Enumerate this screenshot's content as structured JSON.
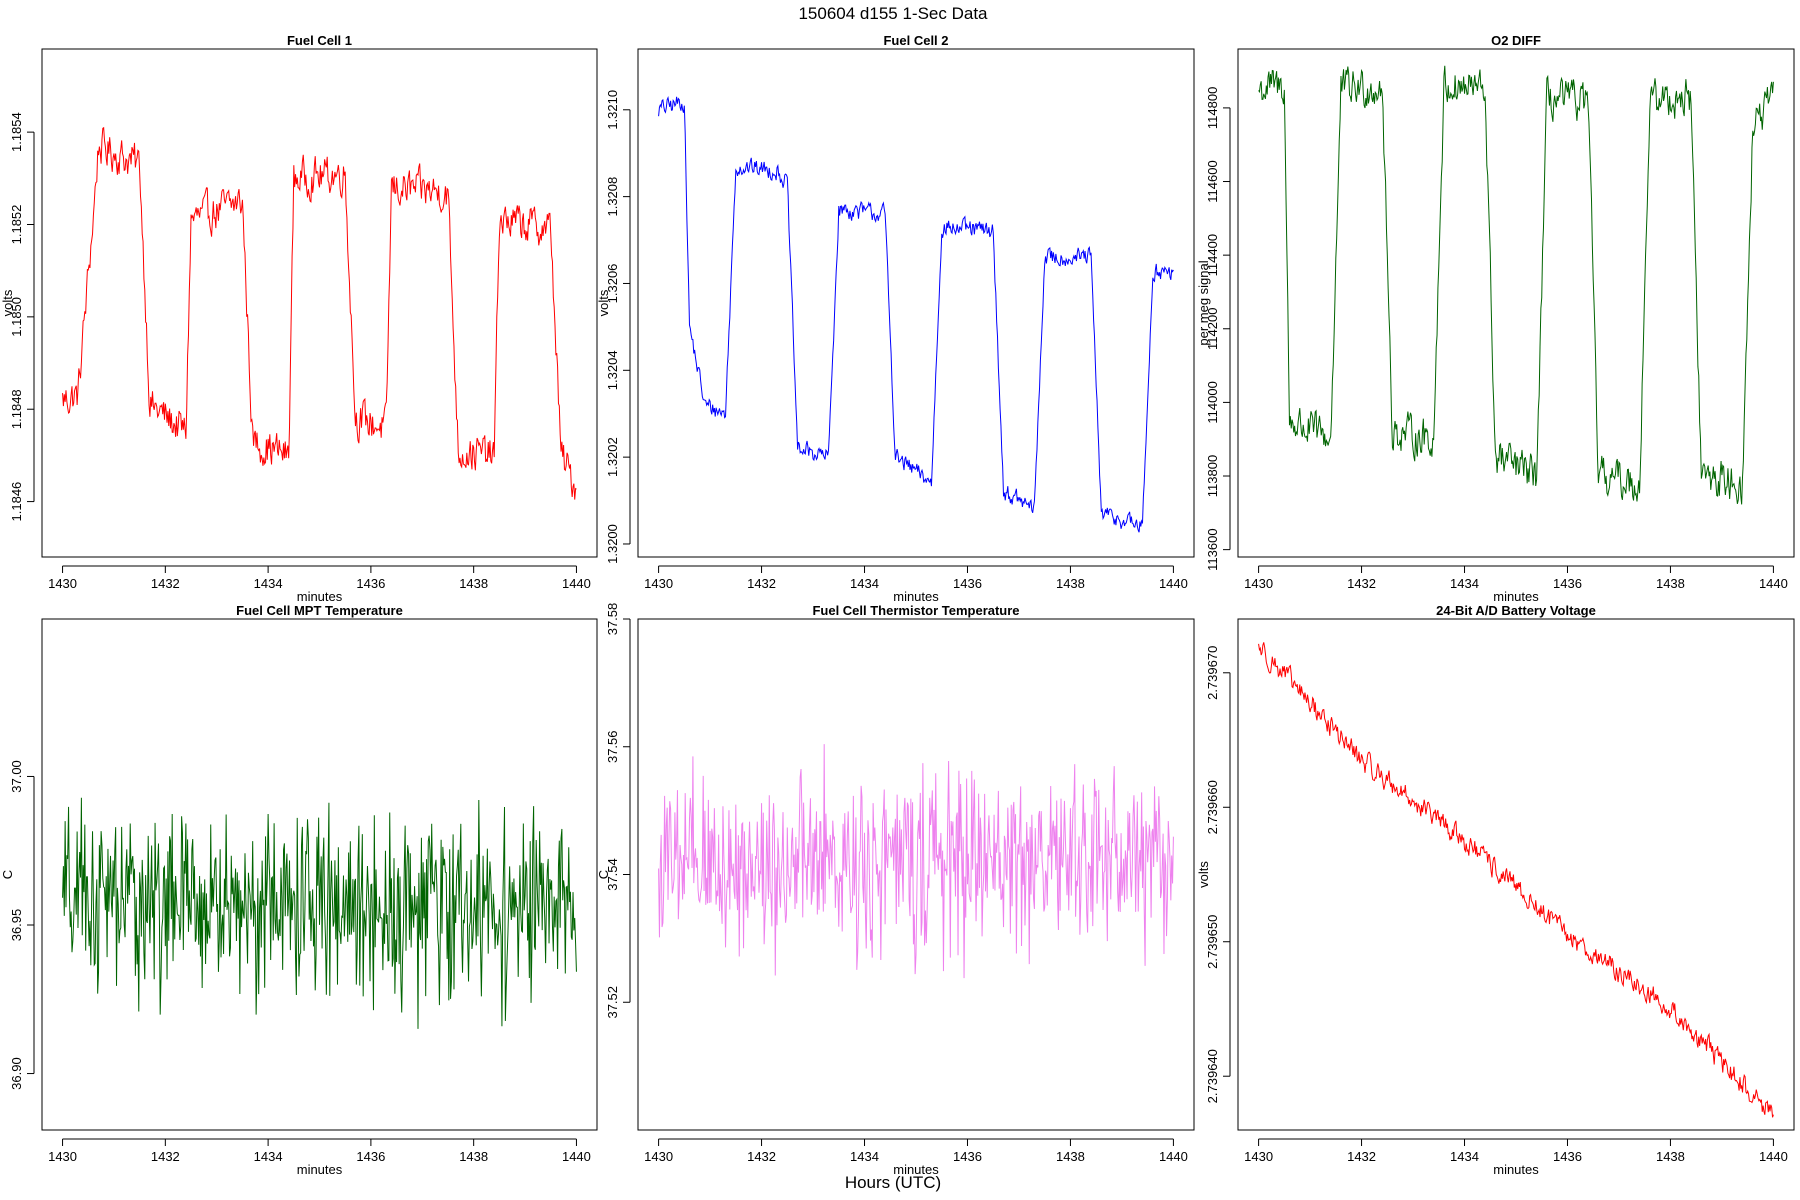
{
  "figure": {
    "title": "150604   d155   1-Sec Data",
    "xlabel": "Hours (UTC)"
  },
  "chart_data": [
    {
      "type": "line",
      "title": "Fuel Cell 1",
      "xlabel": "minutes",
      "ylabel": "volts",
      "color": "#ff0000",
      "xlim": [
        1429.6,
        1440.4
      ],
      "ylim": [
        1.18448,
        1.18558
      ],
      "xticks": [
        1430,
        1432,
        1434,
        1436,
        1438,
        1440
      ],
      "xtick_labels": [
        "1430",
        "1432",
        "1434",
        "1436",
        "1438",
        "1440"
      ],
      "yticks": [
        1.1846,
        1.1848,
        1.185,
        1.1852,
        1.1854
      ],
      "ytick_labels": [
        "1.1846",
        "1.1848",
        "1.1850",
        "1.1852",
        "1.1854"
      ],
      "pattern": "square",
      "x": [
        1430,
        1430.3,
        1430.6,
        1430.7,
        1431.5,
        1431.7,
        1432.4,
        1432.5,
        1433.5,
        1433.7,
        1434.4,
        1434.5,
        1435.5,
        1435.7,
        1436.3,
        1436.4,
        1437.5,
        1437.7,
        1438.4,
        1438.5,
        1439.5,
        1439.7,
        1440
      ],
      "values": [
        1.18482,
        1.18483,
        1.18522,
        1.18537,
        1.18533,
        1.18481,
        1.18475,
        1.18521,
        1.18525,
        1.18473,
        1.1847,
        1.1853,
        1.18531,
        1.18478,
        1.18476,
        1.18528,
        1.18527,
        1.18471,
        1.1847,
        1.18521,
        1.18519,
        1.1847,
        1.18463
      ],
      "noise": 3.5e-05
    },
    {
      "type": "line",
      "title": "Fuel Cell 2",
      "xlabel": "minutes",
      "ylabel": "volts",
      "color": "#0000ff",
      "xlim": [
        1429.6,
        1440.4
      ],
      "ylim": [
        1.31997,
        1.32114
      ],
      "xticks": [
        1430,
        1432,
        1434,
        1436,
        1438,
        1440
      ],
      "xtick_labels": [
        "1430",
        "1432",
        "1434",
        "1436",
        "1438",
        "1440"
      ],
      "yticks": [
        1.32,
        1.3202,
        1.3204,
        1.3206,
        1.3208,
        1.321
      ],
      "ytick_labels": [
        "1.3200",
        "1.3202",
        "1.3204",
        "1.3206",
        "1.3208",
        "1.3210"
      ],
      "pattern": "square",
      "x": [
        1430,
        1430.5,
        1430.6,
        1430.9,
        1431.3,
        1431.5,
        1432.3,
        1432.5,
        1432.7,
        1433.3,
        1433.5,
        1434.4,
        1434.6,
        1435.3,
        1435.5,
        1436.5,
        1436.7,
        1437.3,
        1437.5,
        1438.4,
        1438.6,
        1439.4,
        1439.6,
        1440
      ],
      "values": [
        1.321,
        1.32102,
        1.3205,
        1.32032,
        1.3203,
        1.32087,
        1.32086,
        1.32083,
        1.32022,
        1.3202,
        1.32077,
        1.32076,
        1.3202,
        1.32014,
        1.32073,
        1.32072,
        1.32012,
        1.32008,
        1.32066,
        1.32066,
        1.32007,
        1.32004,
        1.32063,
        1.32062
      ],
      "noise": 1.8e-05
    },
    {
      "type": "line",
      "title": "O2 DIFF",
      "xlabel": "minutes",
      "ylabel": "per meg signal",
      "color": "#006400",
      "xlim": [
        1429.6,
        1440.4
      ],
      "ylim": [
        113580,
        114960
      ],
      "xticks": [
        1430,
        1432,
        1434,
        1436,
        1438,
        1440
      ],
      "xtick_labels": [
        "1430",
        "1432",
        "1434",
        "1436",
        "1438",
        "1440"
      ],
      "yticks": [
        113600,
        113800,
        114000,
        114200,
        114400,
        114600,
        114800
      ],
      "ytick_labels": [
        "113600",
        "113800",
        "114000",
        "114200",
        "114400",
        "114600",
        "114800"
      ],
      "pattern": "square",
      "x": [
        1430,
        1430.5,
        1430.6,
        1431.4,
        1431.6,
        1432.4,
        1432.6,
        1433.4,
        1433.6,
        1434.4,
        1434.6,
        1435.4,
        1435.6,
        1436.4,
        1436.6,
        1437.4,
        1437.6,
        1438.4,
        1438.6,
        1439.4,
        1439.6,
        1440
      ],
      "values": [
        114850,
        114860,
        113950,
        113900,
        114850,
        114860,
        113920,
        113900,
        114860,
        114850,
        113850,
        113800,
        114820,
        114820,
        113800,
        113780,
        114820,
        114830,
        113800,
        113780,
        114750,
        114820
      ],
      "noise": 45
    },
    {
      "type": "line",
      "title": "Fuel Cell MPT Temperature",
      "xlabel": "minutes",
      "ylabel": "C",
      "color": "#006400",
      "xlim": [
        1429.6,
        1440.4
      ],
      "ylim": [
        36.881,
        37.053
      ],
      "xticks": [
        1430,
        1432,
        1434,
        1436,
        1438,
        1440
      ],
      "xtick_labels": [
        "1430",
        "1432",
        "1434",
        "1436",
        "1438",
        "1440"
      ],
      "yticks": [
        36.9,
        36.95,
        37.0
      ],
      "ytick_labels": [
        "36.90",
        "36.95",
        "37.00"
      ],
      "pattern": "noise",
      "x": [
        1430,
        1440
      ],
      "values": [
        36.958,
        36.955
      ],
      "noise": 0.024
    },
    {
      "type": "line",
      "title": "Fuel Cell Thermistor Temperature",
      "xlabel": "minutes",
      "ylabel": "C",
      "color": "#ee82ee",
      "xlim": [
        1429.6,
        1440.4
      ],
      "ylim": [
        37.5,
        37.58
      ],
      "xticks": [
        1430,
        1432,
        1434,
        1436,
        1438,
        1440
      ],
      "xtick_labels": [
        "1430",
        "1432",
        "1434",
        "1436",
        "1438",
        "1440"
      ],
      "yticks": [
        37.52,
        37.54,
        37.56,
        37.58
      ],
      "ytick_labels": [
        "37.52",
        "37.54",
        "37.56",
        "37.58"
      ],
      "pattern": "noise",
      "x": [
        1430,
        1440
      ],
      "values": [
        37.541,
        37.543
      ],
      "noise": 0.011
    },
    {
      "type": "line",
      "title": "24-Bit A/D Battery Voltage",
      "xlabel": "minutes",
      "ylabel": "volts",
      "color": "#ff0000",
      "xlim": [
        1429.6,
        1440.4
      ],
      "ylim": [
        2.739636,
        2.739674
      ],
      "xticks": [
        1430,
        1432,
        1434,
        1436,
        1438,
        1440
      ],
      "xtick_labels": [
        "1430",
        "1432",
        "1434",
        "1436",
        "1438",
        "1440"
      ],
      "yticks": [
        2.73964,
        2.73965,
        2.73966,
        2.73967
      ],
      "ytick_labels": [
        "2.739640",
        "2.739650",
        "2.739660",
        "2.739670"
      ],
      "pattern": "trend",
      "x": [
        1430,
        1432,
        1434,
        1436,
        1438,
        1440
      ],
      "values": [
        2.739672,
        2.7396635,
        2.7396575,
        2.7396505,
        2.739645,
        2.739637
      ],
      "noise": 7e-07
    }
  ]
}
